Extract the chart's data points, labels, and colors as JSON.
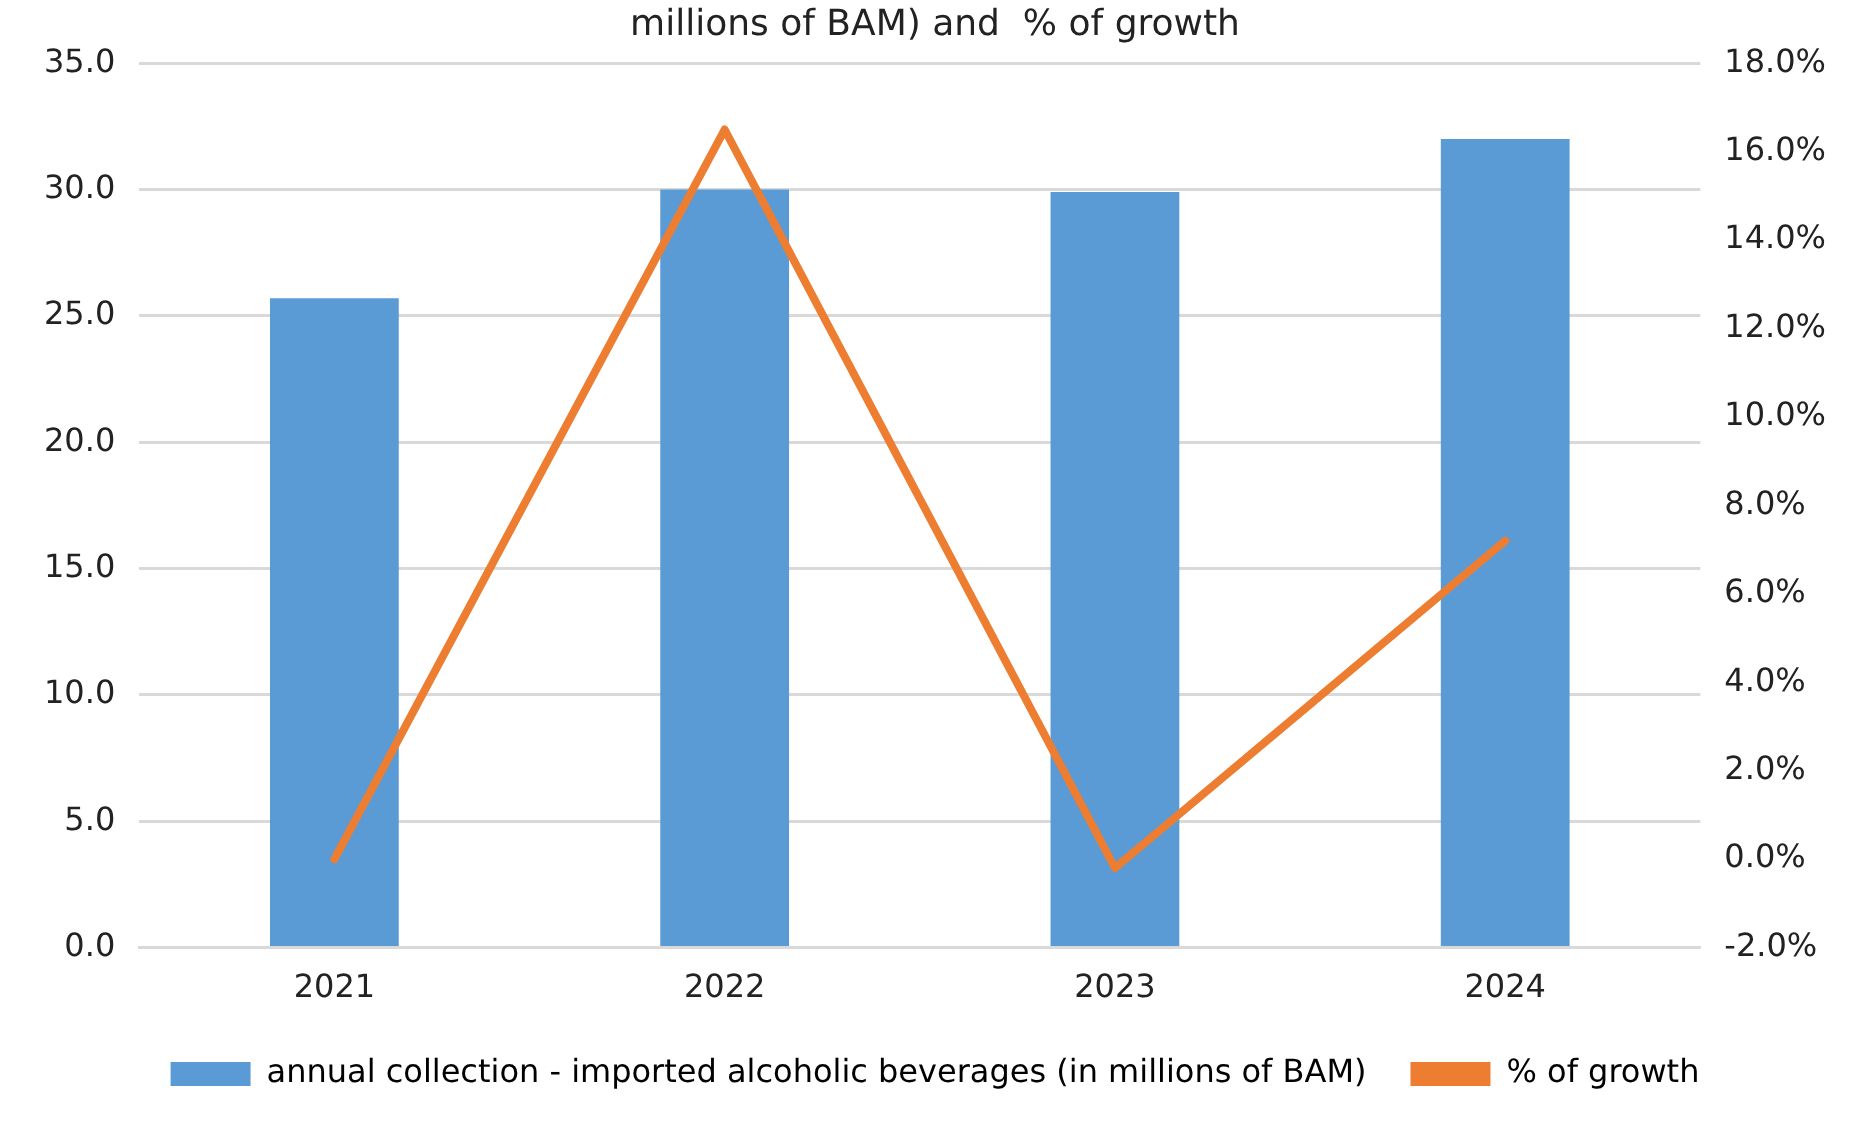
{
  "chart_data": {
    "type": "bar",
    "title": "millions of BAM) and  % of growth",
    "categories": [
      "2021",
      "2022",
      "2023",
      "2024"
    ],
    "series": [
      {
        "name": "annual collection - imported alcoholic beverages (in millions of BAM)",
        "color": "#5b9bd5",
        "values": [
          25.7,
          30.0,
          29.9,
          32.0
        ]
      },
      {
        "name": "% of growth",
        "type": "line",
        "axis": "y2",
        "color": "#ed7d31",
        "values": [
          0.0,
          16.5,
          -0.2,
          7.2
        ]
      }
    ],
    "ylim": [
      0,
      35
    ],
    "yticks": [
      {
        "value": 0,
        "label": "0.0"
      },
      {
        "value": 5,
        "label": "5.0"
      },
      {
        "value": 10,
        "label": "10.0"
      },
      {
        "value": 15,
        "label": "15.0"
      },
      {
        "value": 20,
        "label": "20.0"
      },
      {
        "value": 25,
        "label": "25.0"
      },
      {
        "value": 30,
        "label": "30.0"
      },
      {
        "value": 35,
        "label": "35.0"
      }
    ],
    "y2lim": [
      -2,
      18
    ],
    "y2ticks": [
      {
        "value": -2,
        "label": "-2.0%"
      },
      {
        "value": 0,
        "label": "0.0%"
      },
      {
        "value": 2,
        "label": "2.0%"
      },
      {
        "value": 4,
        "label": "4.0%"
      },
      {
        "value": 6,
        "label": "6.0%"
      },
      {
        "value": 8,
        "label": "8.0%"
      },
      {
        "value": 10,
        "label": "10.0%"
      },
      {
        "value": 12,
        "label": "12.0%"
      },
      {
        "value": 14,
        "label": "14.0%"
      },
      {
        "value": 16,
        "label": "16.0%"
      },
      {
        "value": 18,
        "label": "18.0%"
      }
    ],
    "grid": "y",
    "legend": "bottom",
    "marker": "none",
    "line_style": "solid"
  }
}
